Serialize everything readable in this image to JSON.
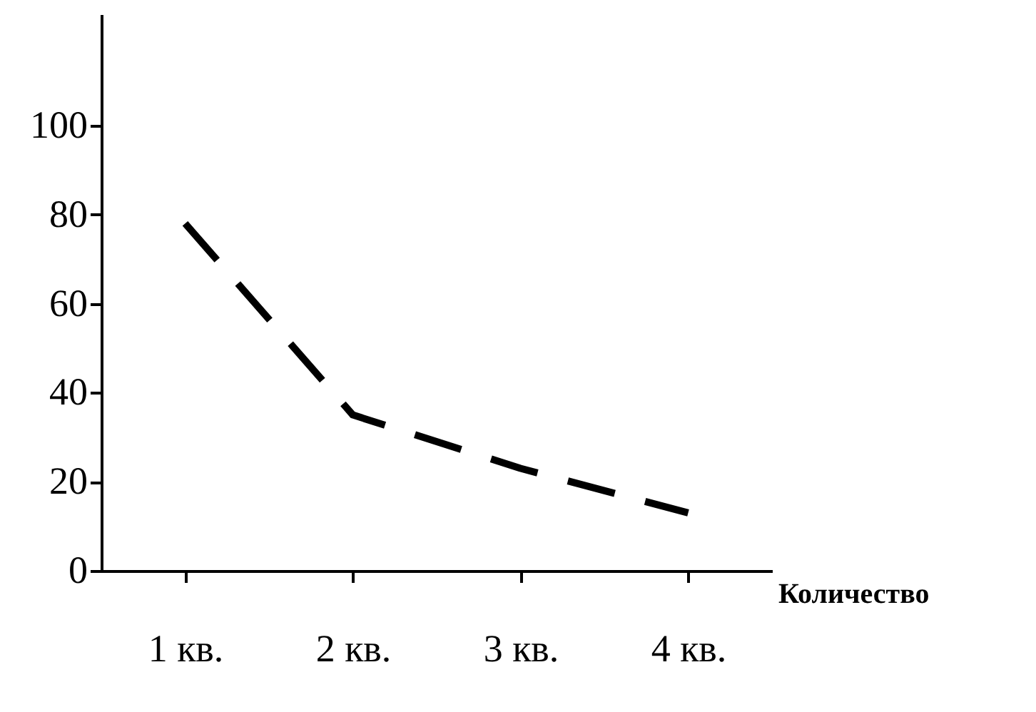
{
  "chart_data": {
    "type": "line",
    "xlabel": "Количество",
    "categories": [
      "1 кв.",
      "2 кв.",
      "3 кв.",
      "4 кв."
    ],
    "series": [
      {
        "color": "#000000",
        "values": [
          78,
          35,
          23,
          13
        ]
      }
    ],
    "ylim": [
      0,
      125
    ],
    "yticks": [
      0,
      20,
      40,
      60,
      80,
      100
    ],
    "line_style": "dashed",
    "marker": "none",
    "grid": false
  }
}
